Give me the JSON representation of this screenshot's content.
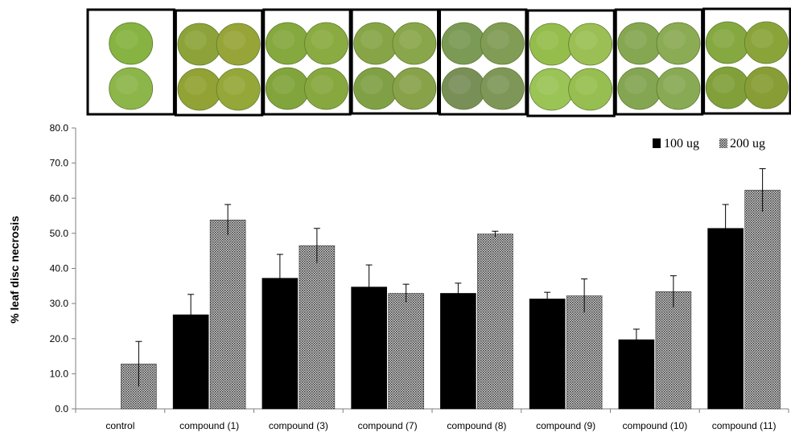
{
  "chart_data": {
    "type": "bar",
    "categories": [
      "control",
      "compound (1)",
      "compound (3)",
      "compound (7)",
      "compound (8)",
      "compound (9)",
      "compound (10)",
      "compound (11)"
    ],
    "series": [
      {
        "name": "100 ug",
        "color": "#000000",
        "values": [
          null,
          26.8,
          37.2,
          34.7,
          32.9,
          31.3,
          19.7,
          51.4
        ],
        "errors": [
          null,
          5.8,
          6.8,
          6.3,
          2.9,
          1.9,
          3.0,
          6.8
        ]
      },
      {
        "name": "200 ug",
        "color": "#8a8a8a",
        "values": [
          12.8,
          53.8,
          46.5,
          32.9,
          49.8,
          32.2,
          33.4,
          62.3
        ],
        "errors": [
          6.4,
          4.4,
          4.9,
          2.6,
          0.8,
          4.8,
          4.5,
          6.1
        ]
      }
    ],
    "ylabel": "% leaf disc necrosis",
    "xlabel": "",
    "ylim": [
      0,
      80
    ],
    "yticks": [
      "0.0",
      "10.0",
      "20.0",
      "30.0",
      "40.0",
      "50.0",
      "60.0",
      "70.0",
      "80.0"
    ],
    "legend_position": "top-right",
    "grid": false,
    "leaf_disc_panel": {
      "panels": 8,
      "disc_colors": [
        [
          "#86b341",
          "#8db64a",
          "#8bb143",
          "#88b447"
        ],
        [
          "#8da33a",
          "#97a437",
          "#93a234",
          "#95a738"
        ],
        [
          "#85a83f",
          "#8aab41",
          "#82a43c",
          "#87a83f"
        ],
        [
          "#87a546",
          "#8aa64b",
          "#80a046",
          "#88a24a"
        ],
        [
          "#7a9a55",
          "#809c55",
          "#788f58",
          "#7e9758"
        ],
        [
          "#95bd4b",
          "#9bbf54",
          "#9ac456",
          "#97be50"
        ],
        [
          "#86a752",
          "#8bab54",
          "#84a552",
          "#89aa55"
        ],
        [
          "#85a840",
          "#8aa43a",
          "#81a03a",
          "#889d35"
        ]
      ]
    }
  }
}
